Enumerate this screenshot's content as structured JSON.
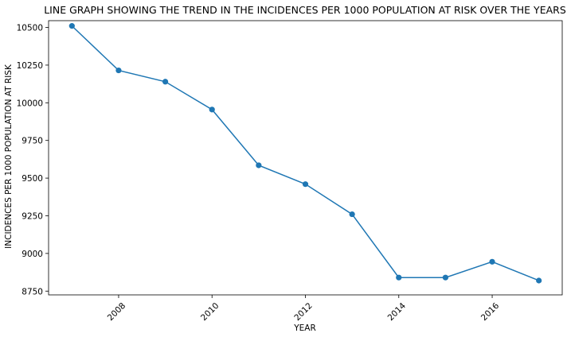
{
  "chart_data": {
    "type": "line",
    "title": "LINE GRAPH SHOWING THE TREND IN THE INCIDENCES PER 1000 POPULATION AT RISK OVER THE YEARS",
    "xlabel": "YEAR",
    "ylabel": "INCIDENCES PER 1000 POPULATION AT RISK",
    "x": [
      2007,
      2008,
      2009,
      2010,
      2011,
      2012,
      2013,
      2014,
      2015,
      2016,
      2017
    ],
    "series": [
      {
        "values": [
          10510,
          10215,
          10140,
          9955,
          9585,
          9460,
          9260,
          8840,
          8840,
          8945,
          8820
        ],
        "color": "#1f77b4"
      }
    ],
    "xlim": [
      2006.5,
      2017.5
    ],
    "ylim": [
      8725,
      10545
    ],
    "xticks": [
      2008,
      2010,
      2012,
      2014,
      2016
    ],
    "yticks": [
      8750,
      9000,
      9250,
      9500,
      9750,
      10000,
      10250,
      10500
    ],
    "xtick_rotation": -45,
    "grid": false,
    "legend": "none"
  }
}
